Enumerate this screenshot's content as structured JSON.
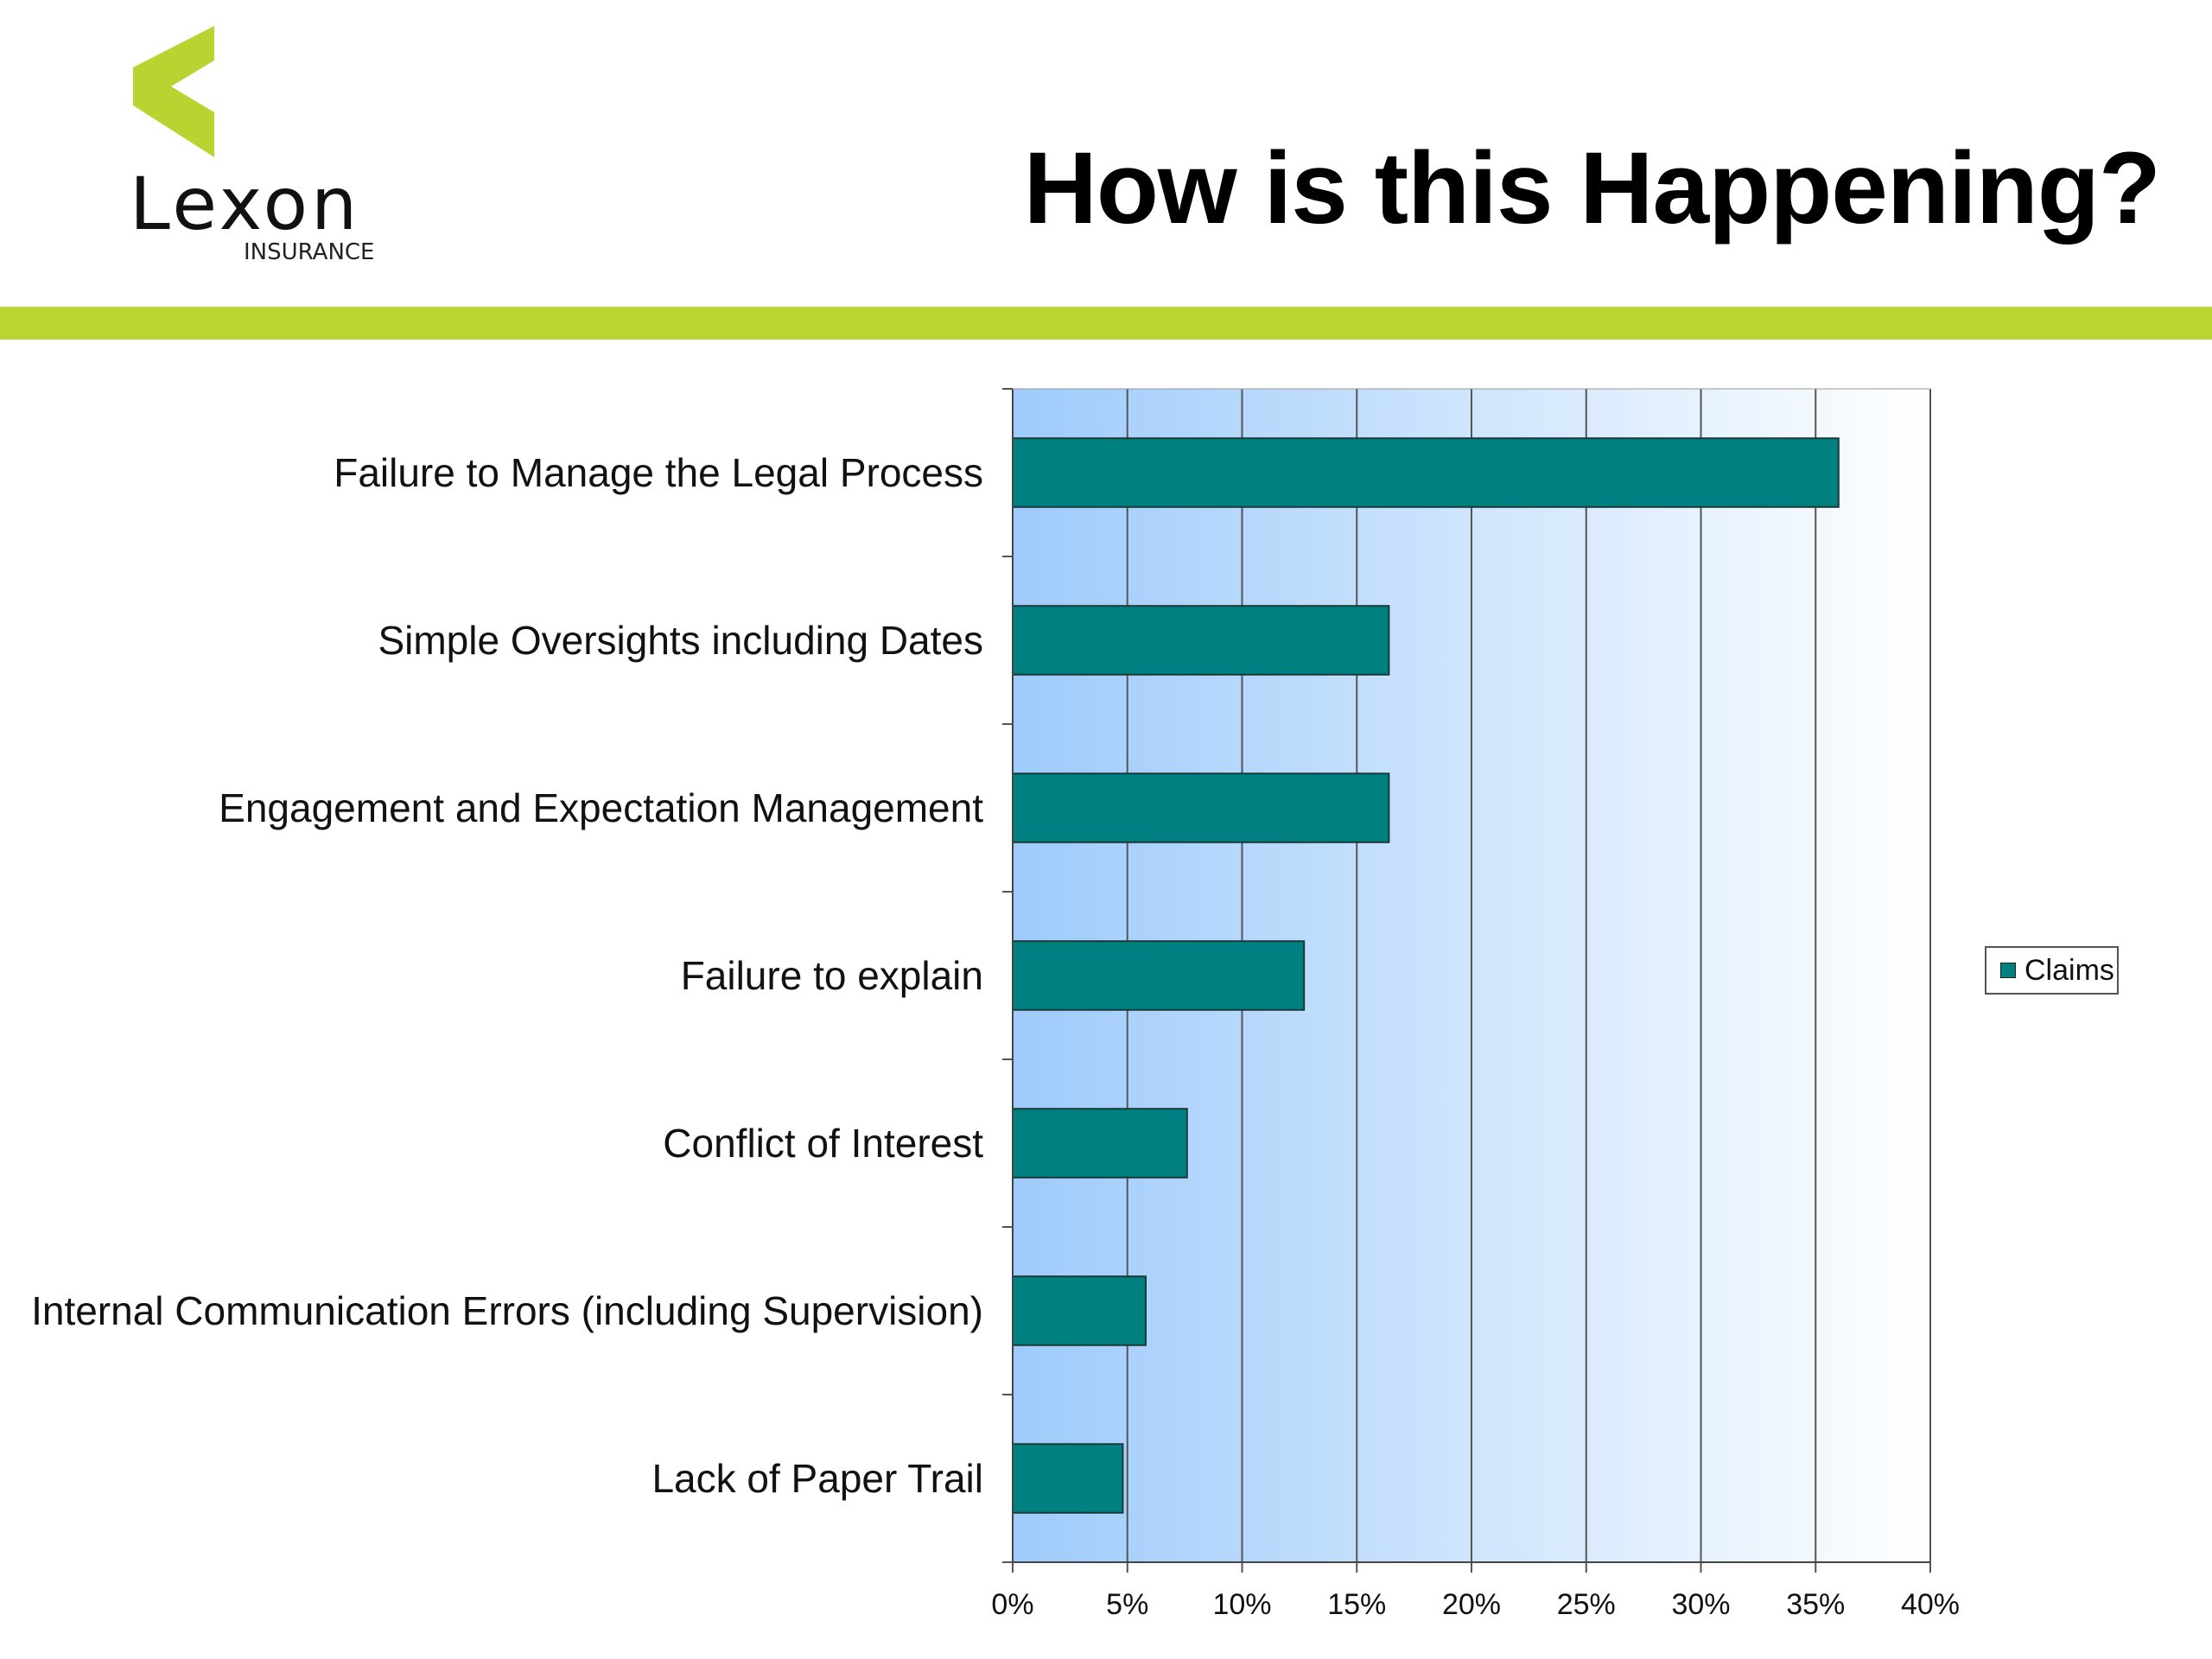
{
  "header": {
    "title": "How is this Happening?",
    "logo": {
      "name": "Lexon",
      "wordmark": "Lexon",
      "subtitle": "INSURANCE",
      "mark_color": "#b8d431"
    },
    "accent_color": "#bcd631"
  },
  "colors": {
    "bar_fill": "#008080",
    "bar_stroke": "#1a3a3a",
    "plot_gradient": [
      "#9ecbfb",
      "#ffffff"
    ],
    "gridline": "#555555"
  },
  "chart_data": {
    "type": "bar",
    "orientation": "horizontal",
    "title": "",
    "xlabel": "",
    "ylabel": "",
    "categories": [
      "Failure to Manage the Legal Process",
      "Simple Oversights including Dates",
      "Engagement and Expectation Management",
      "Failure to explain",
      "Conflict of Interest",
      "Internal Communication Errors (including Supervision)",
      "Lack of Paper Trail"
    ],
    "series": [
      {
        "name": "Claims",
        "values": [
          36,
          16.4,
          16.4,
          12.7,
          7.6,
          5.8,
          4.8
        ]
      }
    ],
    "xlim": [
      0,
      40
    ],
    "xticks": [
      "0%",
      "5%",
      "10%",
      "15%",
      "20%",
      "25%",
      "30%",
      "35%",
      "40%"
    ],
    "grid": "vertical",
    "legend": {
      "position": "right",
      "entries": [
        "Claims"
      ]
    }
  }
}
